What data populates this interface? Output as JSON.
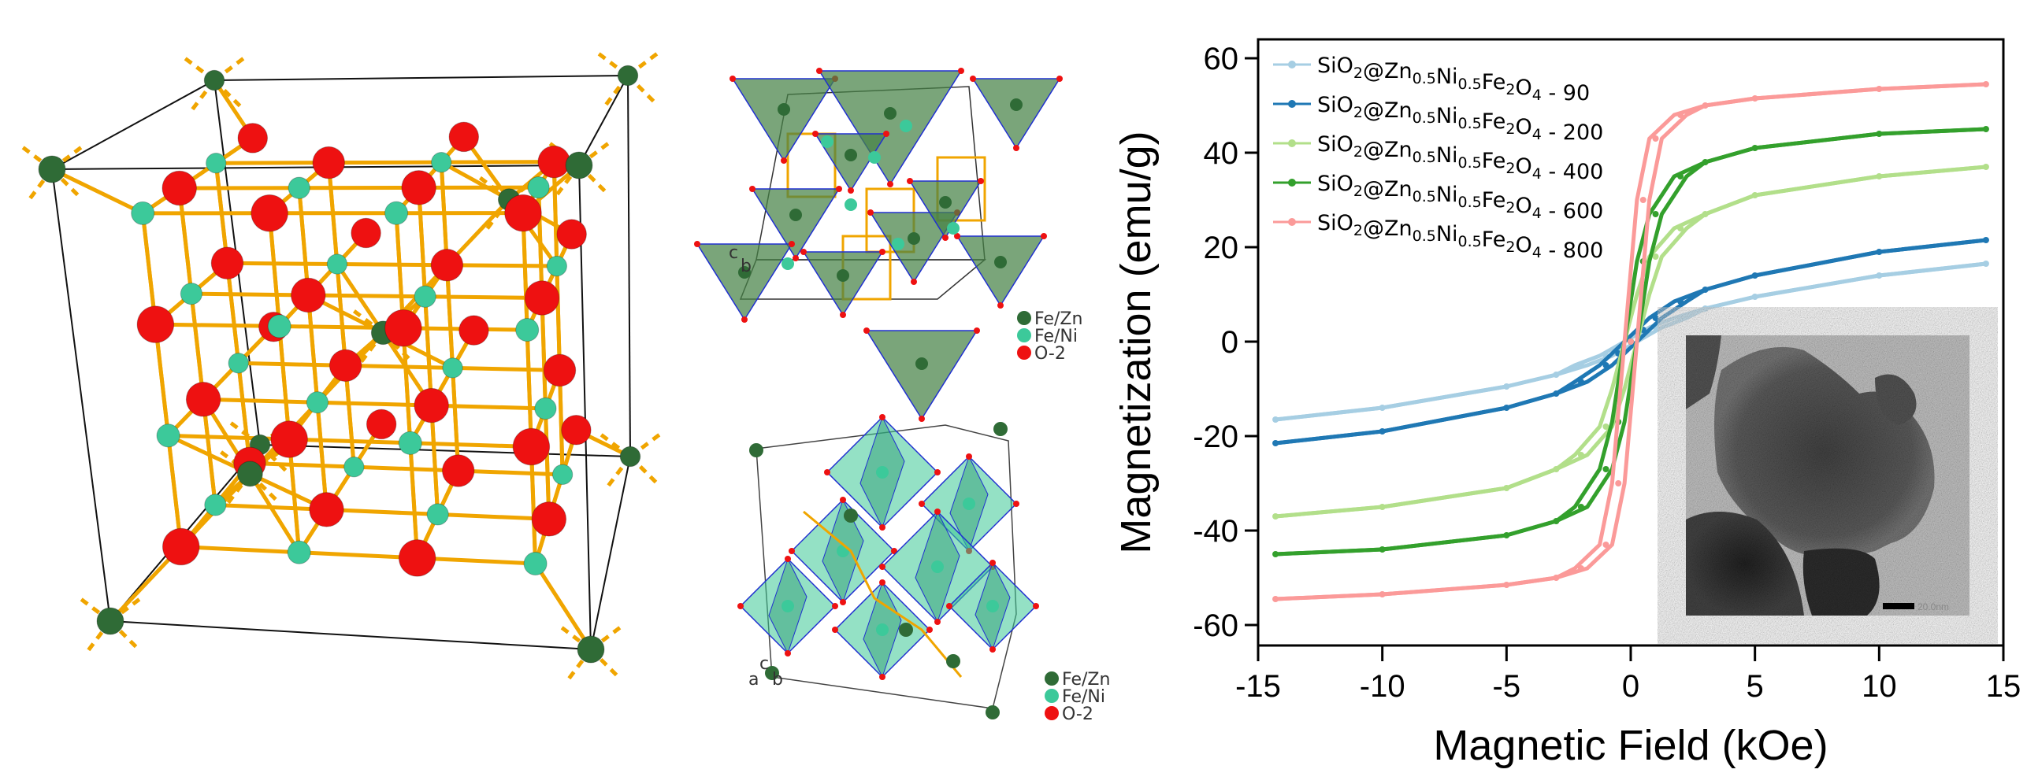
{
  "structure_top": {
    "legend": [
      "Fe/Zn",
      "Fe/Ni",
      "O-2"
    ],
    "axes": [
      "c",
      "b"
    ]
  },
  "structure_bottom": {
    "legend": [
      "Fe/Zn",
      "Fe/Ni",
      "O-2"
    ],
    "axes": [
      "c",
      "a",
      "b"
    ]
  },
  "colors": {
    "fe_zn": "#2f6b36",
    "fe_ni": "#3cc99a",
    "oxygen": "#ee1111",
    "bond": "#f0a500"
  },
  "inset": {
    "scale_bar": "20.0nm"
  },
  "chart_data": {
    "type": "line",
    "xlabel": "Magnetic Field (kOe)",
    "ylabel": "Magnetization (emu/g)",
    "xlim": [
      -15,
      15
    ],
    "ylim": [
      -65,
      65
    ],
    "xticks": [
      "-15",
      "-10",
      "-5",
      "0",
      "5",
      "10",
      "15"
    ],
    "yticks": [
      "-60",
      "-40",
      "-20",
      "0",
      "20",
      "40",
      "60"
    ],
    "legend_position": "top-left",
    "grid": false,
    "formula_parts": [
      {
        "t": "SiO"
      },
      {
        "sub": "2"
      },
      {
        "t": "@Zn"
      },
      {
        "sub": "0.5"
      },
      {
        "t": "Ni"
      },
      {
        "sub": "0.5"
      },
      {
        "t": "Fe"
      },
      {
        "sub": "2"
      },
      {
        "t": "O"
      },
      {
        "sub": "4"
      }
    ],
    "x": [
      -14.3,
      -10,
      -5,
      -3,
      -2,
      -1,
      -0.5,
      0,
      0.5,
      1,
      2,
      3,
      5,
      10,
      14.3
    ],
    "series": [
      {
        "name": "SiO2@Zn0.5Ni0.5Fe2O4 - 90",
        "suffix": " - 90",
        "color": "#a6cee3",
        "values": [
          -16.5,
          -14,
          -9.5,
          -7,
          -5,
          -3,
          -1.5,
          0,
          1.5,
          3,
          5,
          7,
          9.5,
          14,
          16.5
        ]
      },
      {
        "name": "SiO2@Zn0.5Ni0.5Fe2O4 - 200",
        "suffix": " - 200",
        "color": "#1f78b4",
        "values": [
          -21.5,
          -19,
          -14,
          -11,
          -8.5,
          -5,
          -2.5,
          0,
          2.5,
          5,
          8.5,
          11,
          14,
          19,
          21.5
        ]
      },
      {
        "name": "SiO2@Zn0.5Ni0.5Fe2O4 - 400",
        "suffix": " - 400",
        "color": "#b2df8a",
        "values": [
          -37,
          -35,
          -31,
          -27,
          -24,
          -18,
          -10,
          0,
          10,
          18,
          24,
          27,
          31,
          35,
          37
        ]
      },
      {
        "name": "SiO2@Zn0.5Ni0.5Fe2O4 - 600",
        "suffix": " - 600",
        "color": "#33a02c",
        "values": [
          -45,
          -44,
          -41,
          -38,
          -35,
          -27,
          -17,
          0,
          17,
          27,
          35,
          38,
          41,
          44,
          45
        ]
      },
      {
        "name": "SiO2@Zn0.5Ni0.5Fe2O4 - 800",
        "suffix": " - 800",
        "color": "#fb9a99",
        "values": [
          -54.5,
          -53.5,
          -51.5,
          -50,
          -48,
          -43,
          -30,
          0,
          30,
          43,
          48,
          50,
          51.5,
          53.5,
          54.5
        ]
      }
    ]
  }
}
